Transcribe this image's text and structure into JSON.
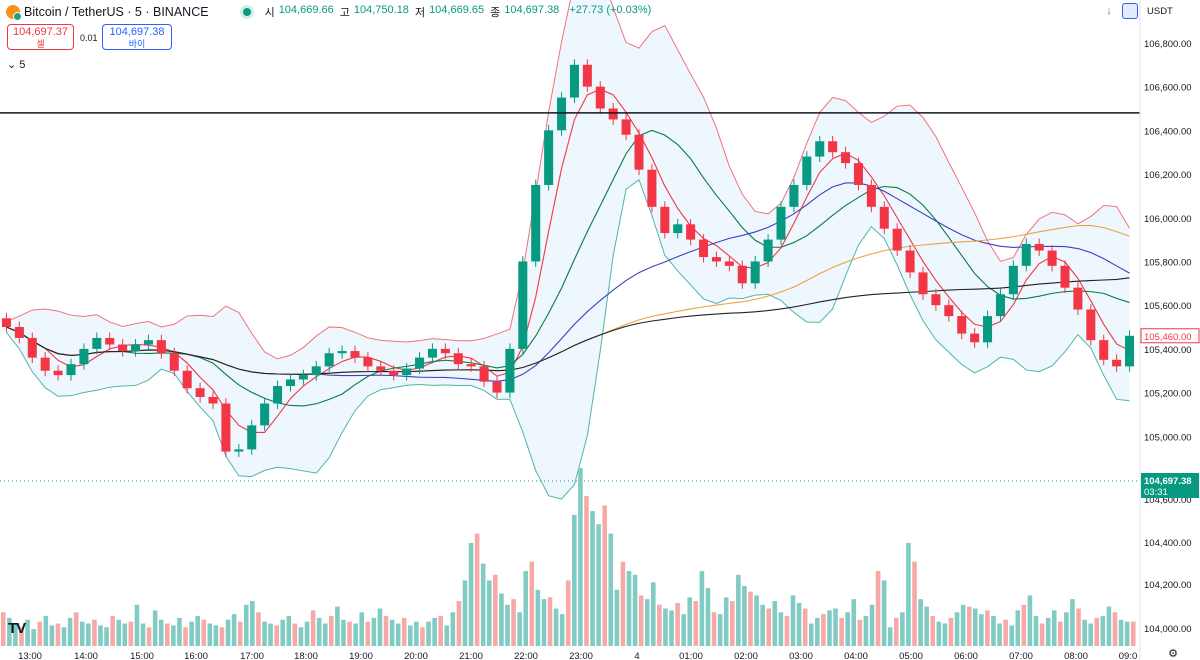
{
  "header": {
    "symbol": "Bitcoin / TetherUS · 5 · BINANCE",
    "ohlc": [
      {
        "k": "시",
        "v": "104,669.66"
      },
      {
        "k": "고",
        "v": "104,750.18"
      },
      {
        "k": "저",
        "v": "104,669.65"
      },
      {
        "k": "종",
        "v": "104,697.38"
      },
      {
        "k": "",
        "v": "+27.73 (+0.03%)"
      }
    ]
  },
  "trade": {
    "sell_price": "104,697.37",
    "sell_label": "셀",
    "spread": "0.01",
    "buy_price": "104,697.38",
    "buy_label": "바이"
  },
  "interval_label": "5",
  "currency": "USDT",
  "colors": {
    "up": "#089981",
    "down": "#f23645",
    "bb_fill": "#e3f2fd"
  },
  "chart_data": {
    "type": "line",
    "x_ticks": [
      "13:00",
      "14:00",
      "15:00",
      "16:00",
      "17:00",
      "18:00",
      "19:00",
      "20:00",
      "21:00",
      "22:00",
      "23:00",
      "4",
      "01:00",
      "02:00",
      "03:00",
      "04:00",
      "05:00",
      "06:00",
      "07:00",
      "08:00",
      "09:0"
    ],
    "y_ticks": [
      "106,800.00",
      "106,600.00",
      "106,400.00",
      "106,200.00",
      "106,000.00",
      "105,800.00",
      "105,600.00",
      "105,400.00",
      "105,200.00",
      "105,000.00",
      "104,800.00"
    ],
    "ylim": [
      104800,
      106850
    ],
    "last_price": {
      "label": "104,697.38",
      "countdown": "03:31"
    },
    "marker_price": "105,460.00",
    "horizontal_line": 106480,
    "close_series": [
      105500,
      105450,
      105360,
      105300,
      105280,
      105330,
      105400,
      105450,
      105420,
      105390,
      105420,
      105440,
      105380,
      105300,
      105220,
      105180,
      105150,
      104930,
      104940,
      105050,
      105150,
      105230,
      105260,
      105280,
      105320,
      105380,
      105390,
      105360,
      105320,
      105300,
      105280,
      105310,
      105360,
      105400,
      105380,
      105330,
      105320,
      105250,
      105200,
      105400,
      105800,
      106150,
      106400,
      106550,
      106700,
      106600,
      106500,
      106450,
      106380,
      106220,
      106050,
      105930,
      105970,
      105900,
      105820,
      105800,
      105780,
      105700,
      105800,
      105900,
      106050,
      106150,
      106280,
      106350,
      106300,
      106250,
      106150,
      106050,
      105950,
      105850,
      105750,
      105650,
      105600,
      105550,
      105470,
      105430,
      105550,
      105650,
      105780,
      105880,
      105850,
      105780,
      105680,
      105580,
      105440,
      105350,
      105320,
      105460
    ]
  },
  "volume_data": [
    18,
    15,
    12,
    10,
    14,
    9,
    13,
    16,
    11,
    12,
    10,
    15,
    18,
    13,
    12,
    14,
    11,
    10,
    16,
    14,
    12,
    13,
    22,
    12,
    10,
    19,
    14,
    12,
    11,
    15,
    10,
    13,
    16,
    14,
    12,
    11,
    10,
    14,
    17,
    13,
    22,
    24,
    18,
    13,
    12,
    11,
    14,
    16,
    12,
    10,
    13,
    19,
    15,
    12,
    16,
    21,
    14,
    13,
    12,
    18,
    13,
    15,
    20,
    16,
    14,
    12,
    15,
    11,
    13,
    10,
    13,
    15,
    16,
    11,
    18,
    24,
    35,
    55,
    60,
    44,
    35,
    38,
    28,
    22,
    25,
    18,
    40,
    45,
    30,
    25,
    26,
    20,
    17,
    35,
    70,
    95,
    80,
    72,
    65,
    75,
    60,
    30,
    45,
    40,
    38,
    27,
    25,
    34,
    22,
    20,
    19,
    23,
    17,
    26,
    24,
    40,
    31,
    18,
    17,
    26,
    24,
    38,
    32,
    29,
    27,
    22,
    20,
    24,
    18,
    16,
    27,
    23,
    20,
    12,
    15,
    17,
    19,
    20,
    15,
    18,
    25,
    14,
    16,
    22,
    40,
    35,
    10,
    15,
    18,
    55,
    45,
    25,
    21,
    16,
    13,
    12,
    15,
    18,
    22,
    21,
    20,
    17,
    19,
    16,
    12,
    14,
    11,
    19,
    22,
    27,
    16,
    12,
    15,
    19,
    13,
    18,
    25,
    20,
    14,
    12,
    15,
    16,
    21,
    18,
    14,
    13,
    13
  ]
}
